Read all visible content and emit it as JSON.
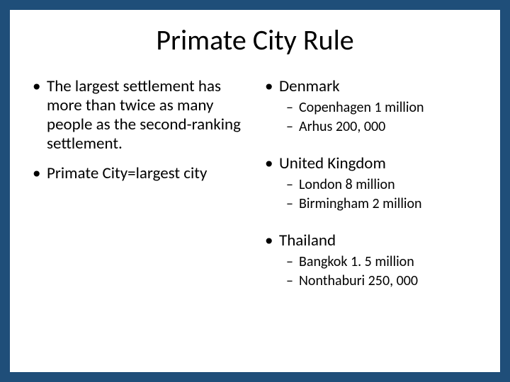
{
  "slide": {
    "title": "Primate City Rule",
    "background_color": "#ffffff",
    "border_color": "#1f4e79",
    "title_color": "#000000",
    "text_color": "#000000",
    "title_fontsize": 40,
    "body_fontsize": 23,
    "sub_fontsize": 20
  },
  "left": {
    "bullets": [
      "The largest settlement has more than twice as many people as the second-ranking settlement.",
      "Primate City=largest city"
    ]
  },
  "right": {
    "countries": [
      {
        "name": "Denmark",
        "cities": [
          "Copenhagen 1 million",
          "Arhus 200, 000"
        ]
      },
      {
        "name": "United Kingdom",
        "cities": [
          "London 8 million",
          "Birmingham 2 million"
        ]
      },
      {
        "name": "Thailand",
        "cities": [
          "Bangkok  1. 5 million",
          "Nonthaburi 250, 000"
        ]
      }
    ]
  }
}
